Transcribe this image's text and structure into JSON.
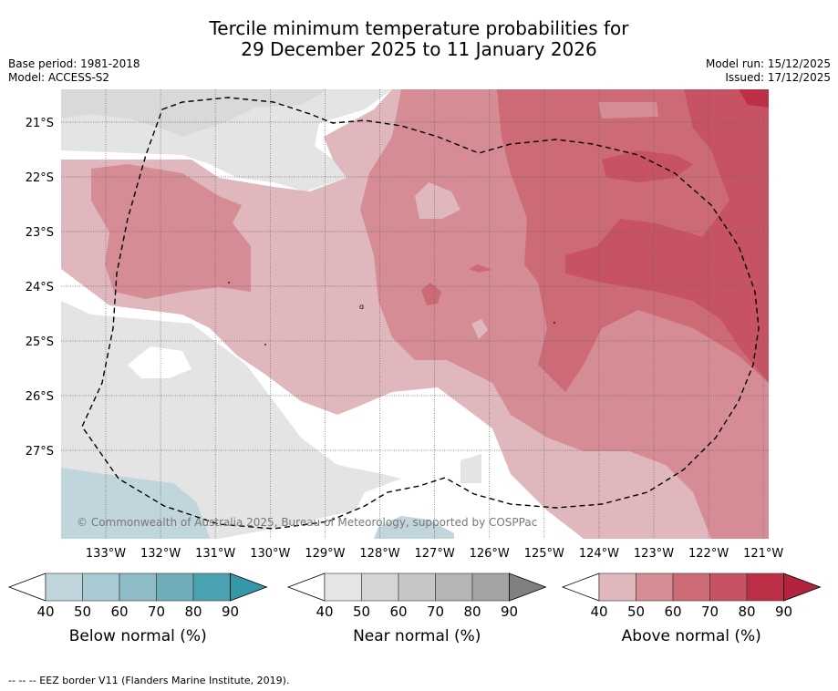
{
  "title_line1": "Tercile minimum temperature probabilities for",
  "title_line2": "29 December 2025 to 11 January 2026",
  "meta_left": [
    "Base period: 1981-2018",
    "Model: ACCESS-S2"
  ],
  "meta_right": [
    "Model run: 15/12/2025",
    "Issued: 17/12/2025"
  ],
  "lat_labels": [
    "21°S",
    "22°S",
    "23°S",
    "24°S",
    "25°S",
    "26°S",
    "27°S"
  ],
  "lon_labels": [
    "133°W",
    "132°W",
    "131°W",
    "130°W",
    "129°W",
    "128°W",
    "127°W",
    "126°W",
    "125°W",
    "124°W",
    "123°W",
    "122°W",
    "121°W"
  ],
  "copyright": "© Commonwealth of Australia 2025, Bureau of Meteorology, supported by COSPPac",
  "colorbars": [
    {
      "title": "Below normal (%)",
      "ticks": [
        "40",
        "50",
        "60",
        "70",
        "80",
        "90"
      ],
      "colors": [
        "#ffffff",
        "#c0d5dc",
        "#a8cbd3",
        "#8dbcc7",
        "#6fadba",
        "#4aa1b1",
        "#3598a8"
      ]
    },
    {
      "title": "Near normal (%)",
      "ticks": [
        "40",
        "50",
        "60",
        "70",
        "80",
        "90"
      ],
      "colors": [
        "#ffffff",
        "#e5e5e5",
        "#d5d5d5",
        "#c6c6c6",
        "#b5b5b5",
        "#a3a3a3",
        "#808080"
      ]
    },
    {
      "title": "Above normal (%)",
      "ticks": [
        "40",
        "50",
        "60",
        "70",
        "80",
        "90"
      ],
      "colors": [
        "#ffffff",
        "#e0b7bd",
        "#d58c95",
        "#cc6a76",
        "#c65264",
        "#bd2f47",
        "#b2233d"
      ]
    }
  ],
  "footnote": "--  --  -- EEZ border V11 (Flanders Marine Institute, 2019)."
}
